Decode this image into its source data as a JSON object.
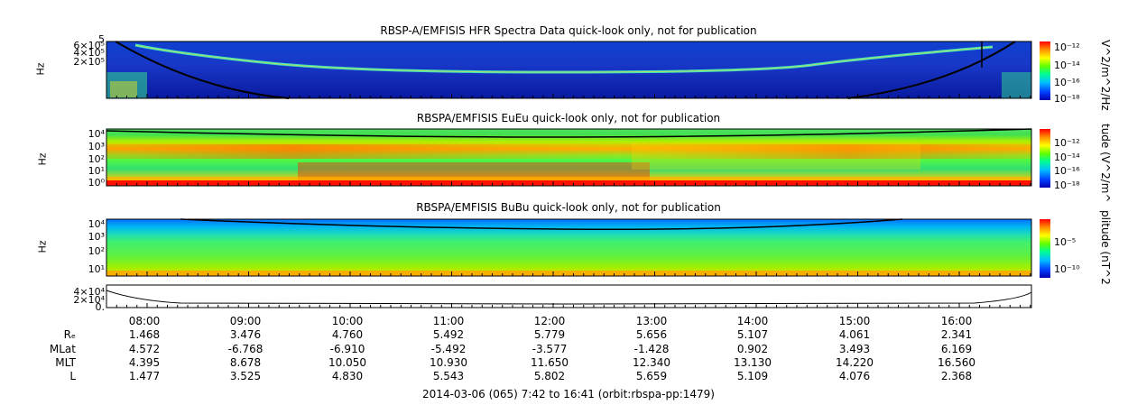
{
  "chart_data": [
    {
      "type": "heatmap",
      "title": "RBSP-A/EMFISIS  HFR Spectra Data quick-look only, not for publication",
      "ylabel": "Hz",
      "colorbar_label": "V^2/m^2/Hz",
      "y_tick_labels": [
        "6×10⁵",
        "4×10⁵",
        "2×10⁵"
      ],
      "y_tick_extra": "5",
      "colorbar_ticks": [
        "10⁻¹²",
        "10⁻¹⁴",
        "10⁻¹⁶",
        "10⁻¹⁸"
      ]
    },
    {
      "type": "heatmap",
      "title": "RBSPA/EMFISIS  EuEu quick-look only, not for publication",
      "ylabel": "Hz",
      "colorbar_label": "tude (V^2/m^",
      "y_tick_labels": [
        "10⁴",
        "10³",
        "10²",
        "10¹",
        "10⁰"
      ],
      "colorbar_ticks": [
        "10⁻¹²",
        "10⁻¹⁴",
        "10⁻¹⁶",
        "10⁻¹⁸"
      ]
    },
    {
      "type": "heatmap",
      "title": "RBSPA/EMFISIS  BuBu quick-look only, not for publication",
      "ylabel": "Hz",
      "colorbar_label": "plitude (nT^2",
      "y_tick_labels": [
        "10⁴",
        "10³",
        "10²",
        "10¹"
      ],
      "colorbar_ticks": [
        "10⁻⁵",
        "10⁻¹⁰"
      ]
    },
    {
      "type": "line",
      "y_tick_labels": [
        "4×10⁴",
        "2×10⁴",
        "0."
      ]
    }
  ],
  "x_tick_labels": [
    "08:00",
    "09:00",
    "10:00",
    "11:00",
    "12:00",
    "13:00",
    "14:00",
    "15:00",
    "16:00"
  ],
  "ephemeris": {
    "labels": [
      "Rₑ",
      "MLat",
      "MLT",
      "L"
    ],
    "rows": [
      [
        "1.468",
        "3.476",
        "4.760",
        "5.492",
        "5.779",
        "5.656",
        "5.107",
        "4.061",
        "2.341"
      ],
      [
        "4.572",
        "-6.768",
        "-6.910",
        "-5.492",
        "-3.577",
        "-1.428",
        "0.902",
        "3.493",
        "6.169"
      ],
      [
        "4.395",
        "8.678",
        "10.050",
        "10.930",
        "11.650",
        "12.340",
        "13.130",
        "14.220",
        "16.560"
      ],
      [
        "1.477",
        "3.525",
        "4.830",
        "5.543",
        "5.802",
        "5.659",
        "5.109",
        "4.076",
        "2.368"
      ]
    ]
  },
  "footer": "2014-03-06 (065) 7:42 to 16:41 (orbit:rbspa-pp:1479)",
  "colors": {
    "spectrum": [
      "#0000a0",
      "#0030ff",
      "#00b0ff",
      "#00ff80",
      "#80ff00",
      "#ffff00",
      "#ffa000",
      "#ff0000"
    ]
  }
}
